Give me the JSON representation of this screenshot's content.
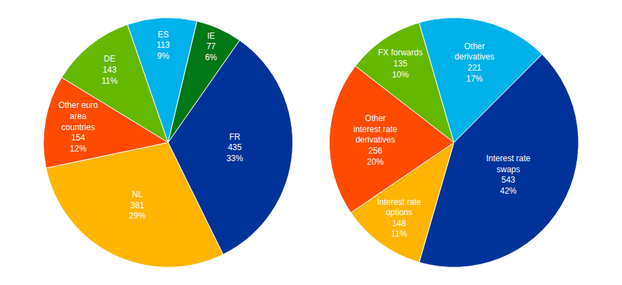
{
  "chart_data": [
    {
      "type": "pie",
      "categories": [
        "FR",
        "NL",
        "Other euro area countries",
        "DE",
        "ES",
        "IE"
      ],
      "amounts": [
        435,
        381,
        154,
        143,
        113,
        77
      ],
      "values": [
        33,
        29,
        12,
        11,
        9,
        6
      ],
      "value_labels": [
        "33%",
        "29%",
        "12%",
        "11%",
        "9%",
        "6%"
      ],
      "colors": [
        "#003399",
        "#ffb400",
        "#ff4b00",
        "#65b800",
        "#00b1ea",
        "#007816"
      ],
      "data_labels": true
    },
    {
      "type": "pie",
      "categories": [
        "Interest rate swaps",
        "Interest rate options",
        "Other interest rate derivatives",
        "FX forwards",
        "Other derivatives"
      ],
      "amounts": [
        543,
        148,
        256,
        135,
        221
      ],
      "values": [
        42,
        11,
        20,
        10,
        17
      ],
      "value_labels": [
        "42%",
        "11%",
        "20%",
        "10%",
        "17%"
      ],
      "colors": [
        "#003399",
        "#ffb400",
        "#ff4b00",
        "#65b800",
        "#00b1ea"
      ],
      "data_labels": true
    }
  ]
}
